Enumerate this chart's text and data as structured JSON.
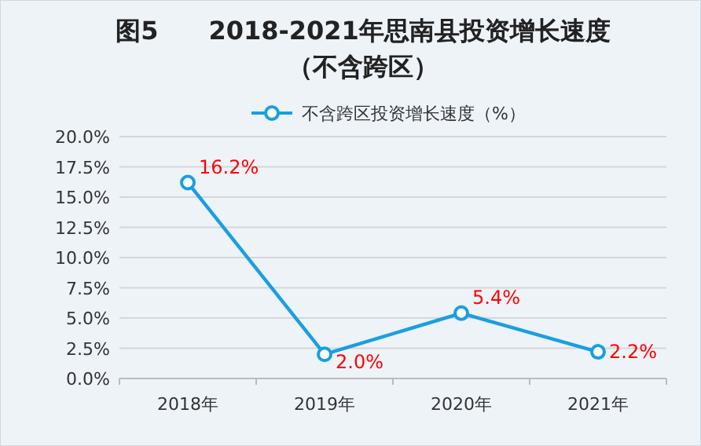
{
  "chart_data": {
    "type": "line",
    "title": "图5　　2018-2021年思南县投资增长速度",
    "subtitle": "（不含跨区）",
    "categories": [
      "2018年",
      "2019年",
      "2020年",
      "2021年"
    ],
    "series": [
      {
        "name": "不含跨区投资增长速度（%）",
        "color": "#1a9fe0",
        "values": [
          16.2,
          2.0,
          5.4,
          2.2
        ]
      }
    ],
    "ylim": [
      0,
      20
    ],
    "yticks": [
      {
        "value": 0,
        "label": "0.0%"
      },
      {
        "value": 2.5,
        "label": "2.5%"
      },
      {
        "value": 5,
        "label": "5.0%"
      },
      {
        "value": 7.5,
        "label": "7.5%"
      },
      {
        "value": 10,
        "label": "10.0%"
      },
      {
        "value": 12.5,
        "label": "12.5%"
      },
      {
        "value": 15,
        "label": "15.0%"
      },
      {
        "value": 17.5,
        "label": "17.5%"
      },
      {
        "value": 20,
        "label": "20.0%"
      }
    ],
    "value_labels": [
      "16.2%",
      "2.0%",
      "5.4%",
      "2.2%"
    ],
    "grid": "y",
    "legend": "top",
    "marker": "circle",
    "line_style": "solid"
  }
}
